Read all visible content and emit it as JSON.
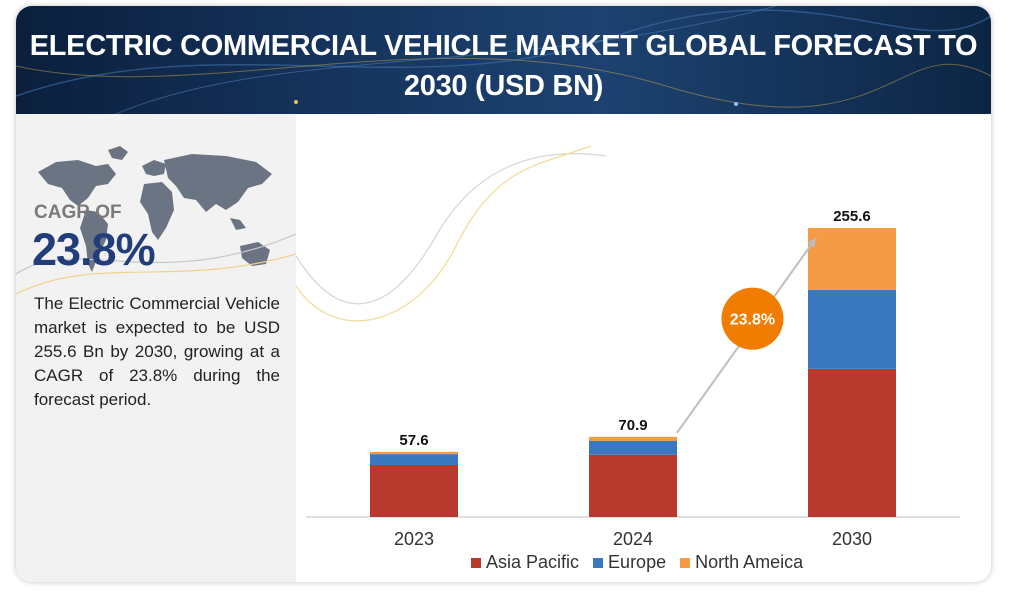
{
  "header": {
    "title_line1": "ELECTRIC COMMERCIAL VEHICLE MARKET GLOBAL FORECAST TO",
    "title_line2": "2030 (USD BN)"
  },
  "left_panel": {
    "cagr_label": "CAGR OF",
    "cagr_value": "23.8%",
    "description": "The Electric Commercial Vehicle market is expected to be USD 255.6 Bn by 2030, growing at a CAGR of 23.8% during the forecast period."
  },
  "chart_data": {
    "type": "bar",
    "stacked": true,
    "categories": [
      "2023",
      "2024",
      "2030"
    ],
    "totals": [
      57.6,
      70.9,
      255.6
    ],
    "total_labels": [
      "57.6",
      "70.9",
      "255.6"
    ],
    "series": [
      {
        "name": "Asia Pacific",
        "color": "#b83a2e",
        "values": [
          46,
          55,
          131
        ]
      },
      {
        "name": "Europe",
        "color": "#3a78c0",
        "values": [
          9.6,
          12.4,
          70
        ]
      },
      {
        "name": "North Ameica",
        "color": "#f59a45",
        "values": [
          2,
          3.5,
          54.6
        ]
      }
    ],
    "ylim": [
      0,
      255.6
    ],
    "grid": false,
    "legend_position": "bottom",
    "annotation": {
      "text": "23.8%",
      "color": "#f07c00",
      "from": "2024",
      "to": "2030"
    }
  }
}
